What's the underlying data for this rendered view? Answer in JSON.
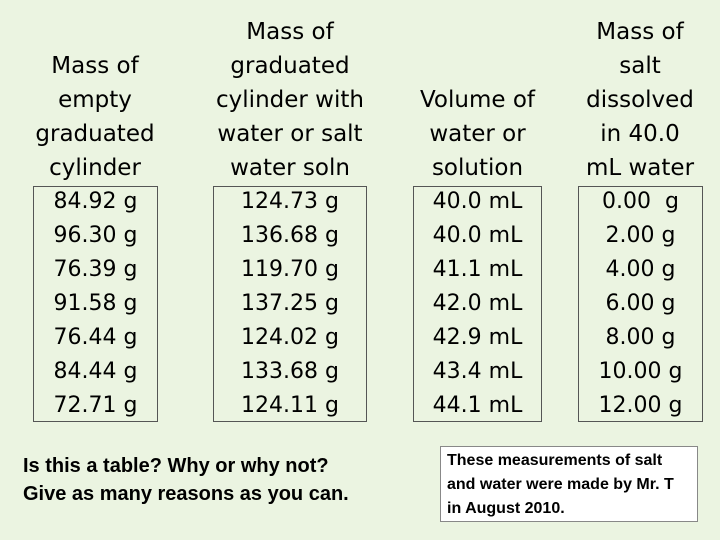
{
  "columns": [
    {
      "header": [
        "Mass of",
        "empty",
        "graduated",
        "cylinder"
      ],
      "values": [
        "84.92 g",
        "96.30 g",
        "76.39 g",
        "91.58 g",
        "76.44 g",
        "84.44 g",
        "72.71 g"
      ]
    },
    {
      "header": [
        "Mass of",
        "graduated",
        "cylinder with",
        "water or salt",
        "water soln"
      ],
      "values": [
        "124.73 g",
        "136.68 g",
        "119.70 g",
        "137.25 g",
        "124.02 g",
        "133.68 g",
        "124.11 g"
      ]
    },
    {
      "header": [
        "Volume of",
        "water or",
        "solution"
      ],
      "values": [
        "40.0 mL",
        "40.0 mL",
        "41.1 mL",
        "42.0 mL",
        "42.9 mL",
        "43.4 mL",
        "44.1 mL"
      ]
    },
    {
      "header": [
        "Mass of",
        "salt",
        "dissolved",
        "in 40.0",
        "mL water"
      ],
      "values": [
        "0.00  g",
        "2.00 g",
        "4.00 g",
        "6.00 g",
        "8.00 g",
        "10.00 g",
        "12.00 g"
      ]
    }
  ],
  "question": [
    "Is this a table?  Why or why not?",
    "Give as many reasons as you can."
  ],
  "note": "These measurements of salt and water were made by Mr. T in August 2010."
}
